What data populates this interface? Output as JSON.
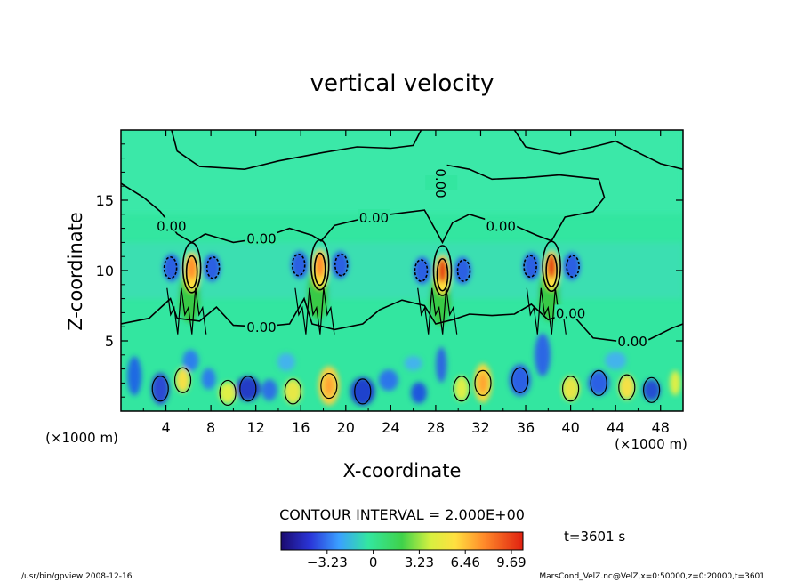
{
  "chart_data": {
    "type": "heatmap",
    "title": "vertical velocity",
    "xlabel": "X-coordinate",
    "ylabel": "Z-coordinate",
    "x_unit_left": "(×1000 m)",
    "x_unit_right": "(×1000 m)",
    "xlim": [
      0,
      50
    ],
    "ylim": [
      0,
      20
    ],
    "x_ticks": [
      4,
      8,
      12,
      16,
      20,
      24,
      28,
      32,
      36,
      40,
      44,
      48
    ],
    "y_ticks": [
      5,
      10,
      15
    ],
    "contour_interval": "CONTOUR INTERVAL = 2.000E+00",
    "colorbar_ticks": [
      {
        "label": "−3.23",
        "value": -3.23
      },
      {
        "label": "0",
        "value": 0
      },
      {
        "label": "3.23",
        "value": 3.23
      },
      {
        "label": "6.46",
        "value": 6.46
      },
      {
        "label": "9.69",
        "value": 9.69
      }
    ],
    "colorbar_range": [
      -6.46,
      10.5
    ],
    "contour_labels": [
      {
        "text": "0.00",
        "x": 4.5,
        "z": 13.2
      },
      {
        "text": "0.00",
        "x": 12.5,
        "z": 12.3
      },
      {
        "text": "0.00",
        "x": 22.5,
        "z": 13.8
      },
      {
        "text": "0.00",
        "x": 28.5,
        "z": 16.2
      },
      {
        "text": "0.00",
        "x": 33.8,
        "z": 13.2
      },
      {
        "text": "0.00",
        "x": 12.5,
        "z": 6.0
      },
      {
        "text": "0.00",
        "x": 40.0,
        "z": 7.0
      },
      {
        "text": "0.00",
        "x": 45.5,
        "z": 5.0
      }
    ],
    "plumes": [
      {
        "x": 6.3,
        "z": 10.2,
        "peak": 7.5
      },
      {
        "x": 17.7,
        "z": 10.4,
        "peak": 7.0
      },
      {
        "x": 28.6,
        "z": 10.0,
        "peak": 9.5
      },
      {
        "x": 38.3,
        "z": 10.3,
        "peak": 9.0
      }
    ],
    "time_label": "t=3601 s",
    "footer_left": "/usr/bin/gpview   2008-12-16",
    "footer_right": "MarsCond_VelZ.nc@VelZ,x=0:50000,z=0:20000,t=3601",
    "colors": {
      "background_field": "#33e6a0",
      "contour": "#000000"
    }
  }
}
